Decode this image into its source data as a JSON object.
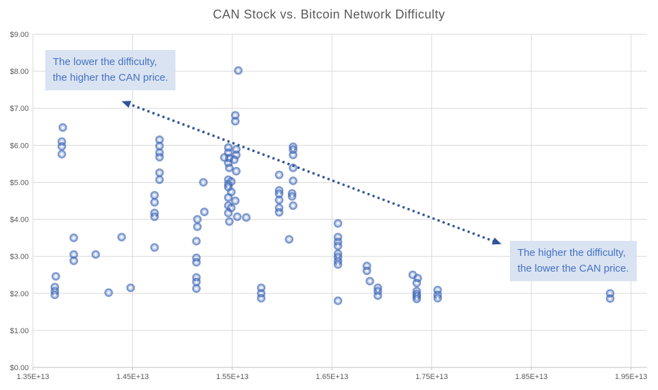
{
  "title": "CAN Stock vs. Bitcoin Network Difficulty",
  "annotations": {
    "left": {
      "line1": "The lower the difficulty,",
      "line2": "the higher the CAN price."
    },
    "right": {
      "line1": "The higher the difficulty,",
      "line2": "the lower the CAN price."
    }
  },
  "colors": {
    "marker": "#4472C4",
    "marker_ring": "#3E66B5",
    "arrow": "#2F5597",
    "annotation_bg": "#DAE3F1",
    "annotation_text": "#4472C4",
    "gridline": "#D9D9D9",
    "axis_line": "#BFBFBF",
    "axis_text": "#595959",
    "title_text": "#595959"
  },
  "chart_data": {
    "type": "scatter",
    "title": "CAN Stock vs. Bitcoin Network Difficulty",
    "xlabel": "",
    "ylabel": "",
    "x_unit_multiplier": 10000000000000.0,
    "xlim": [
      1.35,
      1.966
    ],
    "ylim": [
      0,
      9
    ],
    "grid": true,
    "x_ticks": [
      "1.35E+13",
      "1.45E+13",
      "1.55E+13",
      "1.65E+13",
      "1.75E+13",
      "1.85E+13",
      "1.95E+13"
    ],
    "x_tick_values": [
      1.35,
      1.45,
      1.55,
      1.65,
      1.75,
      1.85,
      1.95
    ],
    "y_ticks": [
      "$0.00",
      "$1.00",
      "$2.00",
      "$3.00",
      "$4.00",
      "$5.00",
      "$6.00",
      "$7.00",
      "$8.00",
      "$9.00"
    ],
    "y_tick_values": [
      0,
      1,
      2,
      3,
      4,
      5,
      6,
      7,
      8,
      9
    ],
    "arrow": {
      "x1": 1.439,
      "y1": 7.19,
      "x2": 1.82,
      "y2": 3.33,
      "style": "dotted",
      "double_headed": true
    },
    "points": [
      [
        1.373,
        2.46
      ],
      [
        1.372,
        2.17
      ],
      [
        1.372,
        2.06
      ],
      [
        1.372,
        1.96
      ],
      [
        1.38,
        6.48
      ],
      [
        1.379,
        6.1
      ],
      [
        1.379,
        5.97
      ],
      [
        1.379,
        5.76
      ],
      [
        1.391,
        3.5
      ],
      [
        1.391,
        3.05
      ],
      [
        1.391,
        2.88
      ],
      [
        1.413,
        3.05
      ],
      [
        1.426,
        2.02
      ],
      [
        1.439,
        3.52
      ],
      [
        1.448,
        2.15
      ],
      [
        1.477,
        6.15
      ],
      [
        1.477,
        5.98
      ],
      [
        1.477,
        5.8
      ],
      [
        1.477,
        5.68
      ],
      [
        1.477,
        5.26
      ],
      [
        1.477,
        5.07
      ],
      [
        1.472,
        4.65
      ],
      [
        1.472,
        4.46
      ],
      [
        1.472,
        4.17
      ],
      [
        1.472,
        4.07
      ],
      [
        1.472,
        3.24
      ],
      [
        1.521,
        5.0
      ],
      [
        1.522,
        4.2
      ],
      [
        1.515,
        4.0
      ],
      [
        1.515,
        3.8
      ],
      [
        1.514,
        3.41
      ],
      [
        1.514,
        2.96
      ],
      [
        1.514,
        2.84
      ],
      [
        1.514,
        2.43
      ],
      [
        1.514,
        2.31
      ],
      [
        1.514,
        2.13
      ],
      [
        1.556,
        8.02
      ],
      [
        1.553,
        6.81
      ],
      [
        1.553,
        6.65
      ],
      [
        1.546,
        5.94
      ],
      [
        1.554,
        5.89
      ],
      [
        1.546,
        5.8
      ],
      [
        1.554,
        5.74
      ],
      [
        1.542,
        5.67
      ],
      [
        1.547,
        5.65
      ],
      [
        1.552,
        5.61
      ],
      [
        1.546,
        5.52
      ],
      [
        1.547,
        5.39
      ],
      [
        1.554,
        5.3
      ],
      [
        1.546,
        5.07
      ],
      [
        1.549,
        5.02
      ],
      [
        1.546,
        4.95
      ],
      [
        1.546,
        4.87
      ],
      [
        1.549,
        4.74
      ],
      [
        1.546,
        4.59
      ],
      [
        1.553,
        4.5
      ],
      [
        1.546,
        4.37
      ],
      [
        1.549,
        4.31
      ],
      [
        1.546,
        4.17
      ],
      [
        1.555,
        4.07
      ],
      [
        1.547,
        3.94
      ],
      [
        1.564,
        4.05
      ],
      [
        1.579,
        2.15
      ],
      [
        1.579,
        2.0
      ],
      [
        1.579,
        1.87
      ],
      [
        1.597,
        5.2
      ],
      [
        1.597,
        4.78
      ],
      [
        1.597,
        4.69
      ],
      [
        1.597,
        4.52
      ],
      [
        1.597,
        4.31
      ],
      [
        1.597,
        4.19
      ],
      [
        1.611,
        5.96
      ],
      [
        1.611,
        5.88
      ],
      [
        1.611,
        5.74
      ],
      [
        1.611,
        5.39
      ],
      [
        1.611,
        5.04
      ],
      [
        1.61,
        4.7
      ],
      [
        1.61,
        4.62
      ],
      [
        1.611,
        4.37
      ],
      [
        1.607,
        3.46
      ],
      [
        1.656,
        3.89
      ],
      [
        1.656,
        3.52
      ],
      [
        1.656,
        3.39
      ],
      [
        1.656,
        3.28
      ],
      [
        1.656,
        3.07
      ],
      [
        1.656,
        2.98
      ],
      [
        1.656,
        2.87
      ],
      [
        1.656,
        2.78
      ],
      [
        1.656,
        1.8
      ],
      [
        1.685,
        2.74
      ],
      [
        1.685,
        2.61
      ],
      [
        1.688,
        2.33
      ],
      [
        1.696,
        2.15
      ],
      [
        1.696,
        2.06
      ],
      [
        1.696,
        1.94
      ],
      [
        1.731,
        2.5
      ],
      [
        1.736,
        2.41
      ],
      [
        1.735,
        2.28
      ],
      [
        1.735,
        2.06
      ],
      [
        1.735,
        1.98
      ],
      [
        1.735,
        1.92
      ],
      [
        1.735,
        1.85
      ],
      [
        1.756,
        2.09
      ],
      [
        1.756,
        1.96
      ],
      [
        1.756,
        1.87
      ],
      [
        1.929,
        2.0
      ],
      [
        1.929,
        1.86
      ]
    ]
  }
}
